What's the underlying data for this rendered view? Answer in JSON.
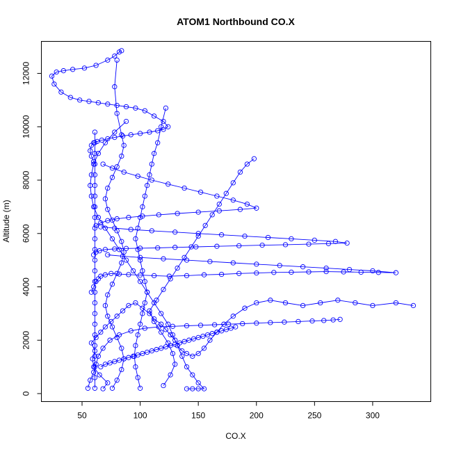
{
  "chart_data": {
    "type": "scatter",
    "title": "ATOM1 Northbound CO.X",
    "xlabel": "CO.X",
    "ylabel": "Altitude (m)",
    "xlim": [
      15,
      350
    ],
    "ylim": [
      -300,
      13200
    ],
    "x_ticks": [
      50,
      100,
      150,
      200,
      250,
      300
    ],
    "y_ticks": [
      0,
      2000,
      4000,
      6000,
      8000,
      10000,
      12000
    ],
    "x_tick_labels": [
      "50",
      "100",
      "150",
      "200",
      "250",
      "300"
    ],
    "y_tick_labels": [
      "0",
      "2000",
      "4000",
      "6000",
      "8000",
      "10000",
      "12000"
    ],
    "color": "#0000ff",
    "marker": "open-circle",
    "connected": true,
    "grid": false,
    "legend": "none",
    "series": [
      {
        "x": [
          68,
          72,
          65,
          60,
          59,
          61,
          58,
          62,
          66,
          70,
          75,
          80,
          85,
          90,
          96,
          102,
          108,
          112,
          118,
          122,
          126,
          130,
          132,
          136,
          140,
          145,
          150,
          155,
          160,
          166,
          172,
          180,
          190,
          200,
          212,
          225,
          240,
          255,
          270,
          285,
          300,
          320,
          335
        ],
        "y": [
          180,
          400,
          700,
          1000,
          1300,
          1600,
          1900,
          2100,
          2300,
          2500,
          2700,
          2900,
          3100,
          3300,
          3400,
          3200,
          3000,
          2800,
          2600,
          2400,
          2200,
          2000,
          1800,
          1600,
          1500,
          1400,
          1500,
          1700,
          2000,
          2300,
          2600,
          2900,
          3200,
          3400,
          3500,
          3400,
          3300,
          3400,
          3500,
          3400,
          3300,
          3400,
          3300
        ]
      },
      {
        "x": [
          58,
          60,
          62,
          64,
          66,
          70,
          75,
          82,
          90,
          100,
          112,
          125,
          140,
          155,
          170,
          185,
          200,
          215,
          230,
          245,
          260,
          275,
          290,
          305,
          320,
          300,
          280,
          260,
          240,
          220,
          200,
          180,
          160,
          140,
          120,
          100,
          85,
          72
        ],
        "y": [
          3800,
          4000,
          4200,
          4300,
          4400,
          4450,
          4500,
          4480,
          4460,
          4440,
          4420,
          4400,
          4420,
          4450,
          4470,
          4500,
          4520,
          4540,
          4550,
          4560,
          4570,
          4560,
          4550,
          4540,
          4530,
          4600,
          4650,
          4700,
          4750,
          4800,
          4850,
          4900,
          4950,
          5000,
          5050,
          5100,
          5150,
          5200
        ]
      },
      {
        "x": [
          60,
          62,
          65,
          70,
          78,
          88,
          100,
          115,
          130,
          148,
          166,
          185,
          205,
          225,
          245,
          262,
          278,
          268,
          250,
          230,
          210,
          190,
          170,
          150,
          130,
          110,
          92,
          78,
          66
        ],
        "y": [
          5200,
          5300,
          5350,
          5400,
          5420,
          5440,
          5450,
          5460,
          5480,
          5500,
          5520,
          5540,
          5560,
          5580,
          5600,
          5620,
          5640,
          5700,
          5750,
          5800,
          5850,
          5900,
          5950,
          6000,
          6050,
          6100,
          6150,
          6200,
          6250
        ]
      },
      {
        "x": [
          62,
          66,
          72,
          80,
          90,
          102,
          116,
          132,
          150,
          168,
          186,
          200,
          192,
          180,
          166,
          152,
          138,
          124,
          110,
          98,
          86,
          76,
          68
        ],
        "y": [
          6300,
          6400,
          6480,
          6550,
          6600,
          6650,
          6700,
          6750,
          6800,
          6850,
          6900,
          6950,
          7100,
          7250,
          7400,
          7550,
          7700,
          7850,
          8000,
          8150,
          8300,
          8450,
          8600
        ]
      },
      {
        "x": [
          60,
          58,
          57,
          58,
          60,
          63,
          67,
          72,
          78,
          85,
          92,
          100,
          108,
          115,
          120,
          124,
          120,
          112,
          104,
          96,
          88,
          80,
          72,
          64,
          56,
          48,
          40,
          32,
          26,
          24,
          28,
          34,
          42,
          52,
          62,
          72,
          78,
          82,
          84
        ],
        "y": [
          8700,
          8900,
          9100,
          9300,
          9400,
          9450,
          9500,
          9550,
          9600,
          9650,
          9700,
          9750,
          9800,
          9850,
          9900,
          10000,
          10200,
          10400,
          10600,
          10700,
          10750,
          10800,
          10850,
          10900,
          10950,
          11000,
          11100,
          11300,
          11600,
          11900,
          12050,
          12100,
          12150,
          12200,
          12300,
          12500,
          12650,
          12800,
          12850
        ]
      },
      {
        "x": [
          140,
          145,
          150,
          155,
          150,
          145,
          140,
          136,
          132,
          128,
          124,
          118,
          112,
          106,
          100,
          94,
          88,
          82,
          76,
          70,
          64,
          60,
          58,
          57,
          58,
          60,
          64,
          70,
          78,
          88
        ],
        "y": [
          180,
          180,
          180,
          180,
          400,
          700,
          1000,
          1400,
          1800,
          2200,
          2600,
          3000,
          3400,
          3800,
          4200,
          4600,
          5000,
          5400,
          5800,
          6200,
          6600,
          7000,
          7400,
          7800,
          8200,
          8600,
          9000,
          9400,
          9800,
          10200
        ]
      },
      {
        "x": [
          55,
          57,
          60,
          62,
          64,
          68,
          74,
          82,
          92,
          104,
          116,
          128,
          140,
          152,
          164,
          176,
          188,
          200,
          212,
          224,
          236,
          248,
          258,
          266,
          272
        ],
        "y": [
          200,
          500,
          800,
          1100,
          1400,
          1700,
          2000,
          2200,
          2350,
          2450,
          2500,
          2520,
          2540,
          2560,
          2580,
          2600,
          2620,
          2640,
          2660,
          2680,
          2700,
          2720,
          2740,
          2760,
          2780
        ]
      },
      {
        "x": [
          61,
          61,
          61,
          61,
          61,
          61,
          61,
          61,
          61,
          61,
          61,
          61,
          61,
          61,
          61,
          61,
          61,
          61,
          61,
          61,
          61,
          61,
          61,
          61,
          61
        ],
        "y": [
          200,
          600,
          1000,
          1400,
          1800,
          2200,
          2600,
          3000,
          3400,
          3800,
          4200,
          4600,
          5000,
          5400,
          5800,
          6200,
          6600,
          7000,
          7400,
          7800,
          8200,
          8600,
          9000,
          9400,
          9800
        ]
      },
      {
        "x": [
          100,
          98,
          96,
          95,
          96,
          98,
          100,
          102,
          104,
          106,
          104,
          102,
          100,
          98,
          96,
          98,
          100,
          102,
          104,
          106,
          108,
          110,
          112,
          115,
          118,
          122
        ],
        "y": [
          200,
          600,
          1000,
          1400,
          1800,
          2200,
          2600,
          3000,
          3400,
          3800,
          4200,
          4600,
          5000,
          5400,
          5800,
          6200,
          6600,
          7000,
          7400,
          7800,
          8200,
          8600,
          9000,
          9400,
          10000,
          10700
        ]
      },
      {
        "x": [
          76,
          80,
          84,
          86,
          84,
          80,
          76,
          72,
          70,
          72,
          76,
          80,
          84,
          86,
          84,
          80,
          76,
          72,
          70,
          72,
          76,
          80,
          84,
          86,
          84,
          80,
          78,
          80
        ],
        "y": [
          200,
          500,
          900,
          1300,
          1700,
          2100,
          2500,
          2900,
          3300,
          3700,
          4100,
          4500,
          4900,
          5300,
          5700,
          6100,
          6500,
          6900,
          7300,
          7700,
          8100,
          8500,
          8900,
          9300,
          9700,
          10500,
          11500,
          12500
        ]
      },
      {
        "x": [
          120,
          126,
          130,
          128,
          124,
          118,
          112,
          108,
          114,
          120,
          126,
          132,
          138,
          144,
          150,
          156,
          162,
          168,
          174,
          180,
          186,
          192,
          198
        ],
        "y": [
          300,
          700,
          1100,
          1500,
          1900,
          2300,
          2700,
          3100,
          3500,
          3900,
          4300,
          4700,
          5100,
          5500,
          5900,
          6300,
          6700,
          7100,
          7500,
          7900,
          8300,
          8600,
          8800
        ]
      },
      {
        "x": [
          66,
          70,
          74,
          78,
          82,
          86,
          90,
          94,
          98,
          102,
          106,
          110,
          114,
          118,
          122,
          126,
          130,
          134,
          138,
          142,
          146,
          150,
          154,
          158,
          162,
          166,
          170,
          174,
          178,
          182
        ],
        "y": [
          1000,
          1100,
          1150,
          1200,
          1250,
          1300,
          1350,
          1400,
          1450,
          1500,
          1550,
          1600,
          1650,
          1700,
          1750,
          1800,
          1850,
          1900,
          1950,
          2000,
          2050,
          2100,
          2150,
          2200,
          2250,
          2300,
          2350,
          2400,
          2450,
          2500
        ]
      }
    ]
  }
}
